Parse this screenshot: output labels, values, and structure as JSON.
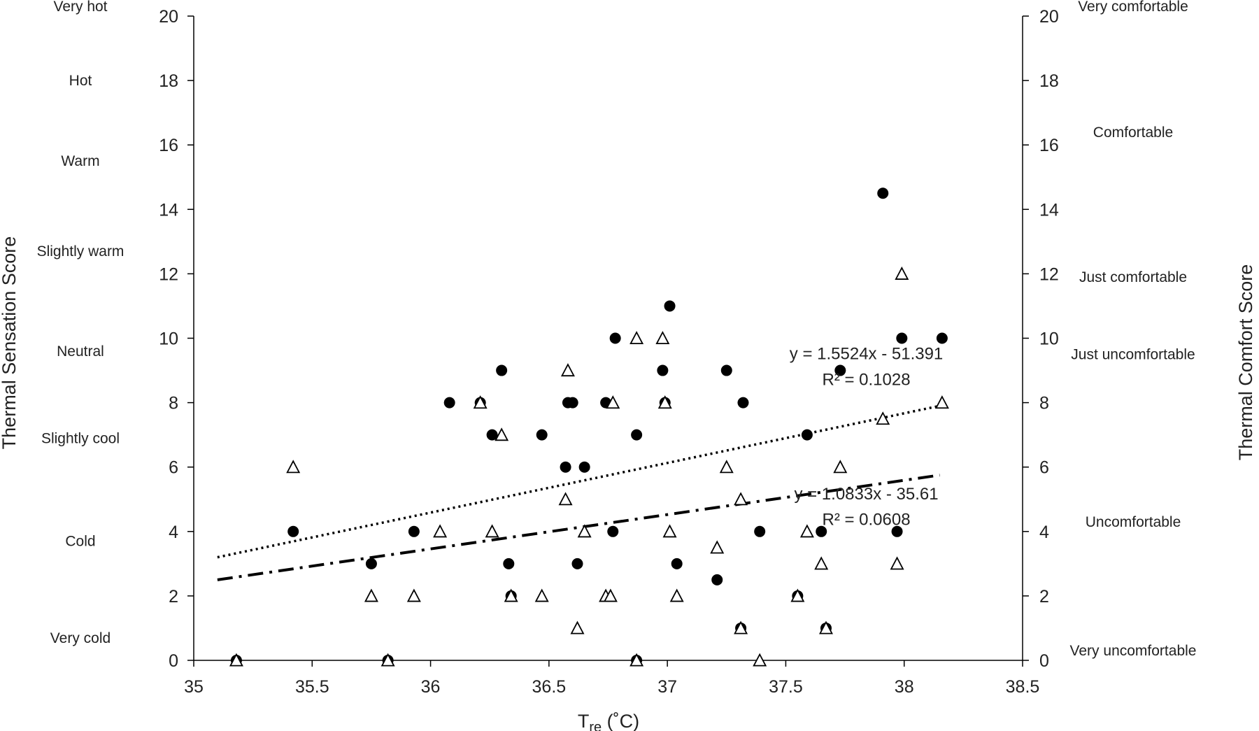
{
  "chart_data": {
    "type": "scatter",
    "title": "",
    "xlabel_main": "T",
    "xlabel_sub": "re",
    "xlabel_unit": " (˚C)",
    "ylabel_left": "Thermal Sensation Score",
    "ylabel_right": "Thermal Comfort Score",
    "xlim": [
      35,
      38.5
    ],
    "ylim": [
      0,
      20
    ],
    "xticks": [
      35,
      35.5,
      36,
      36.5,
      37,
      37.5,
      38,
      38.5
    ],
    "yticks": [
      0,
      2,
      4,
      6,
      8,
      10,
      12,
      14,
      16,
      18,
      20
    ],
    "grid": false,
    "left_categories": [
      {
        "label": "Very hot",
        "y": 20.3
      },
      {
        "label": "Hot",
        "y": 18
      },
      {
        "label": "Warm",
        "y": 15.5
      },
      {
        "label": "Slightly warm",
        "y": 12.7
      },
      {
        "label": "Neutral",
        "y": 9.6
      },
      {
        "label": "Slightly cool",
        "y": 6.9
      },
      {
        "label": "Cold",
        "y": 3.7
      },
      {
        "label": "Very cold",
        "y": 0.7
      }
    ],
    "right_categories": [
      {
        "label": "Very comfortable",
        "y": 20.3
      },
      {
        "label": "Comfortable",
        "y": 16.4
      },
      {
        "label": "Just comfortable",
        "y": 11.9
      },
      {
        "label": "Just uncomfortable",
        "y": 9.5
      },
      {
        "label": "Uncomfortable",
        "y": 4.3
      },
      {
        "label": "Very uncomfortable",
        "y": 0.3
      }
    ],
    "series": [
      {
        "marker": "filled-circle",
        "color": "#000000",
        "points": [
          [
            35.18,
            0
          ],
          [
            35.42,
            4
          ],
          [
            35.75,
            3
          ],
          [
            35.82,
            0
          ],
          [
            35.93,
            4
          ],
          [
            36.08,
            8
          ],
          [
            36.21,
            8
          ],
          [
            36.26,
            7
          ],
          [
            36.3,
            9
          ],
          [
            36.33,
            3
          ],
          [
            36.34,
            2
          ],
          [
            36.47,
            7
          ],
          [
            36.57,
            6
          ],
          [
            36.58,
            8
          ],
          [
            36.6,
            8
          ],
          [
            36.62,
            3
          ],
          [
            36.65,
            6
          ],
          [
            36.74,
            8
          ],
          [
            36.77,
            4
          ],
          [
            36.78,
            10
          ],
          [
            36.87,
            7
          ],
          [
            36.87,
            0
          ],
          [
            36.98,
            9
          ],
          [
            36.99,
            8
          ],
          [
            37.01,
            11
          ],
          [
            37.04,
            3
          ],
          [
            37.21,
            2.5
          ],
          [
            37.25,
            9
          ],
          [
            37.31,
            1
          ],
          [
            37.32,
            8
          ],
          [
            37.39,
            4
          ],
          [
            37.55,
            2
          ],
          [
            37.59,
            7
          ],
          [
            37.65,
            4
          ],
          [
            37.67,
            1
          ],
          [
            37.73,
            9
          ],
          [
            37.91,
            14.5
          ],
          [
            37.97,
            4
          ],
          [
            37.99,
            10
          ],
          [
            38.16,
            10
          ]
        ]
      },
      {
        "marker": "open-triangle",
        "color": "#000000",
        "points": [
          [
            35.18,
            0
          ],
          [
            35.42,
            6
          ],
          [
            35.75,
            2
          ],
          [
            35.82,
            0
          ],
          [
            35.93,
            2
          ],
          [
            36.04,
            4
          ],
          [
            36.21,
            8
          ],
          [
            36.26,
            4
          ],
          [
            36.3,
            7
          ],
          [
            36.34,
            2
          ],
          [
            36.47,
            2
          ],
          [
            36.57,
            5
          ],
          [
            36.58,
            9
          ],
          [
            36.62,
            1
          ],
          [
            36.65,
            4
          ],
          [
            36.74,
            2
          ],
          [
            36.76,
            2
          ],
          [
            36.77,
            8
          ],
          [
            36.87,
            10
          ],
          [
            36.87,
            0
          ],
          [
            36.98,
            10
          ],
          [
            36.99,
            8
          ],
          [
            37.01,
            4
          ],
          [
            37.04,
            2
          ],
          [
            37.21,
            3.5
          ],
          [
            37.25,
            6
          ],
          [
            37.31,
            5
          ],
          [
            37.31,
            1
          ],
          [
            37.39,
            0
          ],
          [
            37.55,
            2
          ],
          [
            37.59,
            4
          ],
          [
            37.65,
            3
          ],
          [
            37.67,
            1
          ],
          [
            37.73,
            6
          ],
          [
            37.91,
            7.5
          ],
          [
            37.97,
            3
          ],
          [
            37.99,
            12
          ],
          [
            38.16,
            8
          ]
        ]
      }
    ],
    "trendlines": [
      {
        "style": "dotted",
        "from": [
          35.1,
          3.2
        ],
        "to": [
          38.15,
          7.9
        ],
        "equation": "y = 1.5524x - 51.391",
        "r2": "R² = 0.1028",
        "eq_pos": [
          37.84,
          9.35
        ],
        "r2_pos": [
          37.84,
          8.55
        ]
      },
      {
        "style": "dash-dot",
        "from": [
          35.1,
          2.5
        ],
        "to": [
          38.15,
          5.75
        ],
        "equation": "y = 1.0833x - 35.61",
        "r2": "R² = 0.0608",
        "eq_pos": [
          37.84,
          5.0
        ],
        "r2_pos": [
          37.84,
          4.2
        ]
      }
    ]
  }
}
